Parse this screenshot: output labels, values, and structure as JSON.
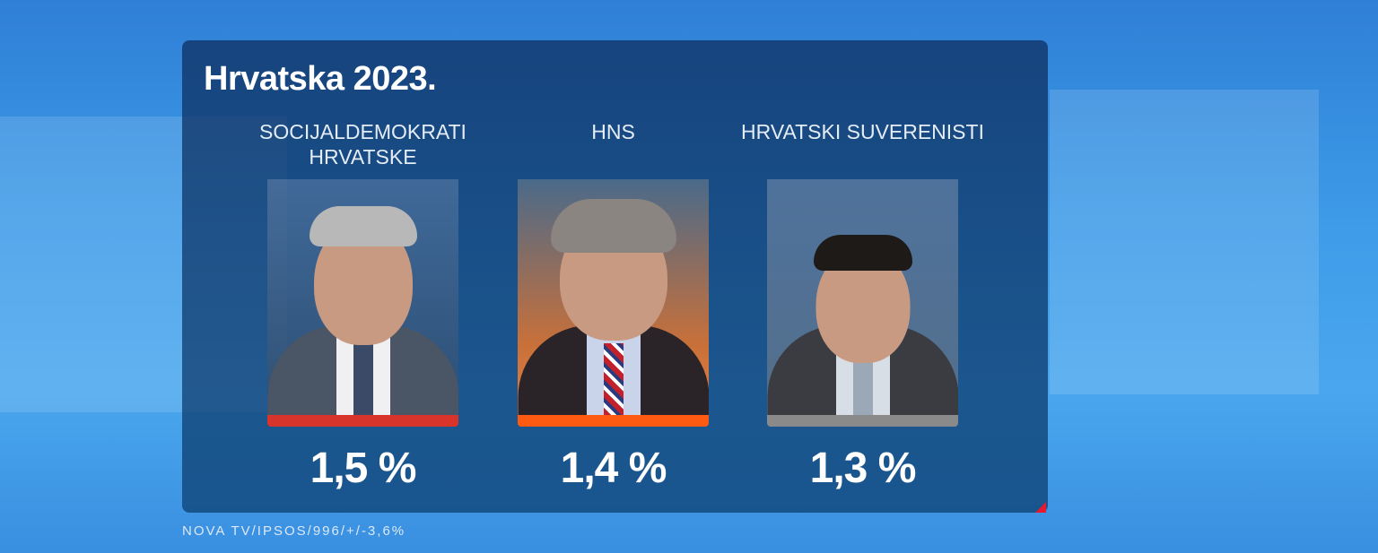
{
  "title": "Hrvatska 2023.",
  "candidates": [
    {
      "party": "SOCIJALDEMOKRATI HRVATSKE",
      "percent": "1,5 %",
      "color": "#d9342b"
    },
    {
      "party": "HNS",
      "percent": "1,4 %",
      "color": "#ff5a12"
    },
    {
      "party": "HRVATSKI SUVERENISTI",
      "percent": "1,3 %",
      "color": "#8a8a8a"
    }
  ],
  "footer": "NOVA TV/IPSOS/996/+/-3,6%"
}
